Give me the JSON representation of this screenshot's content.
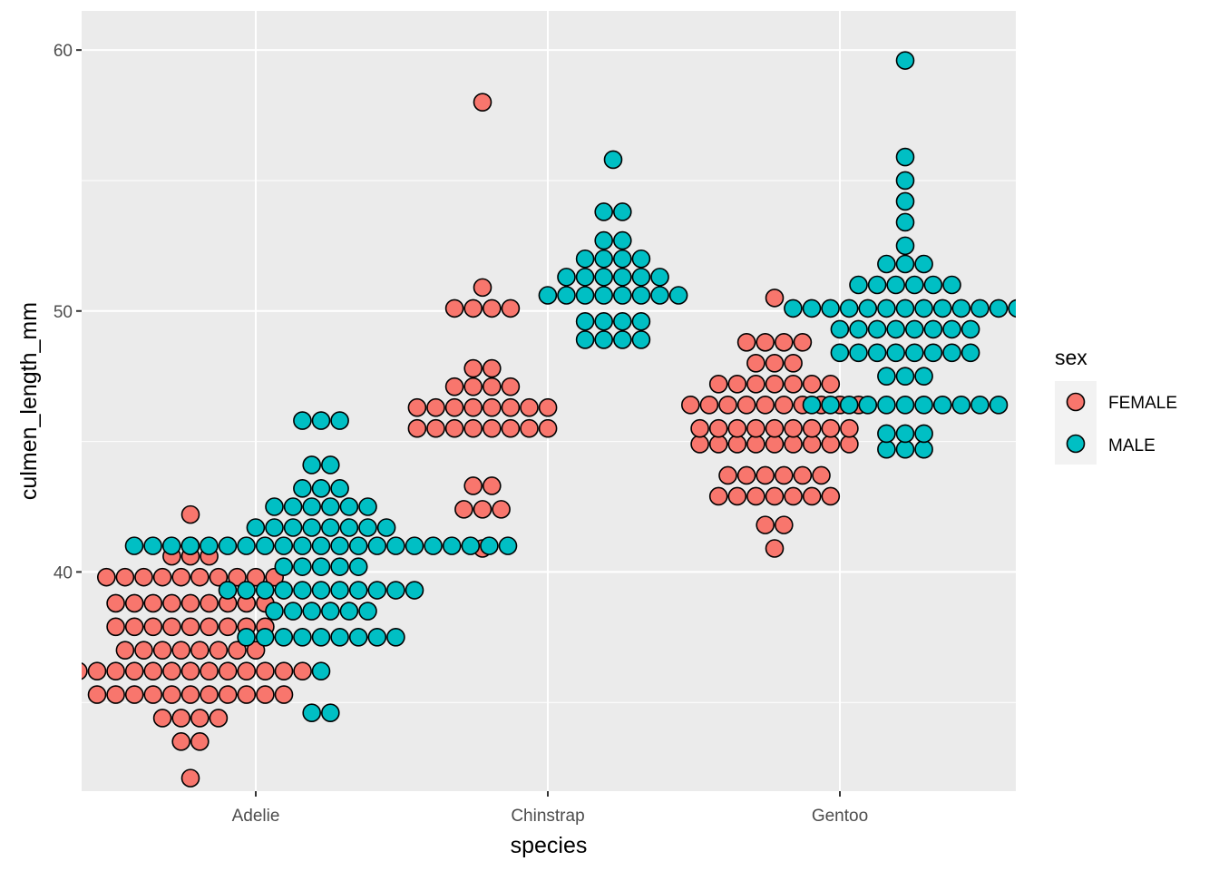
{
  "chart_data": {
    "type": "scatter",
    "subtype": "dotplot",
    "xlabel": "species",
    "ylabel": "culmen_length_mm",
    "categories": [
      "Adelie",
      "Chinstrap",
      "Gentoo"
    ],
    "yticks": [
      40,
      50,
      60
    ],
    "ylim": [
      31.6,
      61.5
    ],
    "grid": true,
    "legend": {
      "title": "sex",
      "position": "right"
    },
    "colors": {
      "FEMALE": "#F8766D",
      "MALE": "#00BFC4",
      "panel": "#EBEBEB",
      "grid": "#FFFFFF",
      "outline": "#000000"
    },
    "series": [
      {
        "name": "FEMALE",
        "color": "#F8766D",
        "bins": [
          {
            "category": "Adelie",
            "y": 32.1,
            "count": 1
          },
          {
            "category": "Adelie",
            "y": 33.5,
            "count": 2
          },
          {
            "category": "Adelie",
            "y": 34.4,
            "count": 4
          },
          {
            "category": "Adelie",
            "y": 35.3,
            "count": 11
          },
          {
            "category": "Adelie",
            "y": 36.2,
            "count": 13
          },
          {
            "category": "Adelie",
            "y": 37.0,
            "count": 8
          },
          {
            "category": "Adelie",
            "y": 37.9,
            "count": 9
          },
          {
            "category": "Adelie",
            "y": 38.8,
            "count": 9
          },
          {
            "category": "Adelie",
            "y": 39.8,
            "count": 10
          },
          {
            "category": "Adelie",
            "y": 40.6,
            "count": 3
          },
          {
            "category": "Adelie",
            "y": 41.0,
            "count": 1
          },
          {
            "category": "Adelie",
            "y": 42.2,
            "count": 1
          },
          {
            "category": "Chinstrap",
            "y": 40.9,
            "count": 1
          },
          {
            "category": "Chinstrap",
            "y": 42.4,
            "count": 3
          },
          {
            "category": "Chinstrap",
            "y": 43.3,
            "count": 2
          },
          {
            "category": "Chinstrap",
            "y": 45.5,
            "count": 8
          },
          {
            "category": "Chinstrap",
            "y": 46.3,
            "count": 8
          },
          {
            "category": "Chinstrap",
            "y": 47.1,
            "count": 4
          },
          {
            "category": "Chinstrap",
            "y": 47.8,
            "count": 2
          },
          {
            "category": "Chinstrap",
            "y": 50.1,
            "count": 4
          },
          {
            "category": "Chinstrap",
            "y": 50.9,
            "count": 1
          },
          {
            "category": "Chinstrap",
            "y": 58.0,
            "count": 1
          },
          {
            "category": "Gentoo",
            "y": 40.9,
            "count": 1
          },
          {
            "category": "Gentoo",
            "y": 41.8,
            "count": 2
          },
          {
            "category": "Gentoo",
            "y": 42.9,
            "count": 7
          },
          {
            "category": "Gentoo",
            "y": 43.7,
            "count": 6
          },
          {
            "category": "Gentoo",
            "y": 44.9,
            "count": 9
          },
          {
            "category": "Gentoo",
            "y": 45.5,
            "count": 9
          },
          {
            "category": "Gentoo",
            "y": 46.4,
            "count": 10
          },
          {
            "category": "Gentoo",
            "y": 47.2,
            "count": 7
          },
          {
            "category": "Gentoo",
            "y": 48.0,
            "count": 3
          },
          {
            "category": "Gentoo",
            "y": 48.8,
            "count": 4
          },
          {
            "category": "Gentoo",
            "y": 50.5,
            "count": 1
          }
        ]
      },
      {
        "name": "MALE",
        "color": "#00BFC4",
        "bins": [
          {
            "category": "Adelie",
            "y": 34.6,
            "count": 2
          },
          {
            "category": "Adelie",
            "y": 36.2,
            "count": 1
          },
          {
            "category": "Adelie",
            "y": 37.5,
            "count": 9
          },
          {
            "category": "Adelie",
            "y": 38.5,
            "count": 6
          },
          {
            "category": "Adelie",
            "y": 39.3,
            "count": 11
          },
          {
            "category": "Adelie",
            "y": 40.2,
            "count": 5
          },
          {
            "category": "Adelie",
            "y": 41.0,
            "count": 21
          },
          {
            "category": "Adelie",
            "y": 41.7,
            "count": 8
          },
          {
            "category": "Adelie",
            "y": 42.5,
            "count": 6
          },
          {
            "category": "Adelie",
            "y": 43.2,
            "count": 3
          },
          {
            "category": "Adelie",
            "y": 44.1,
            "count": 2
          },
          {
            "category": "Adelie",
            "y": 45.8,
            "count": 3
          },
          {
            "category": "Chinstrap",
            "y": 48.9,
            "count": 4
          },
          {
            "category": "Chinstrap",
            "y": 49.6,
            "count": 4
          },
          {
            "category": "Chinstrap",
            "y": 50.6,
            "count": 8
          },
          {
            "category": "Chinstrap",
            "y": 51.3,
            "count": 6
          },
          {
            "category": "Chinstrap",
            "y": 52.0,
            "count": 4
          },
          {
            "category": "Chinstrap",
            "y": 52.7,
            "count": 2
          },
          {
            "category": "Chinstrap",
            "y": 53.8,
            "count": 2
          },
          {
            "category": "Chinstrap",
            "y": 55.8,
            "count": 1
          },
          {
            "category": "Gentoo",
            "y": 44.7,
            "count": 3
          },
          {
            "category": "Gentoo",
            "y": 45.3,
            "count": 3
          },
          {
            "category": "Gentoo",
            "y": 46.4,
            "count": 11
          },
          {
            "category": "Gentoo",
            "y": 47.5,
            "count": 3
          },
          {
            "category": "Gentoo",
            "y": 48.4,
            "count": 8
          },
          {
            "category": "Gentoo",
            "y": 49.3,
            "count": 8
          },
          {
            "category": "Gentoo",
            "y": 50.1,
            "count": 13
          },
          {
            "category": "Gentoo",
            "y": 51.0,
            "count": 6
          },
          {
            "category": "Gentoo",
            "y": 51.8,
            "count": 3
          },
          {
            "category": "Gentoo",
            "y": 52.5,
            "count": 1
          },
          {
            "category": "Gentoo",
            "y": 53.4,
            "count": 1
          },
          {
            "category": "Gentoo",
            "y": 54.2,
            "count": 1
          },
          {
            "category": "Gentoo",
            "y": 55.0,
            "count": 1
          },
          {
            "category": "Gentoo",
            "y": 55.9,
            "count": 1
          },
          {
            "category": "Gentoo",
            "y": 59.6,
            "count": 1
          }
        ]
      }
    ]
  }
}
